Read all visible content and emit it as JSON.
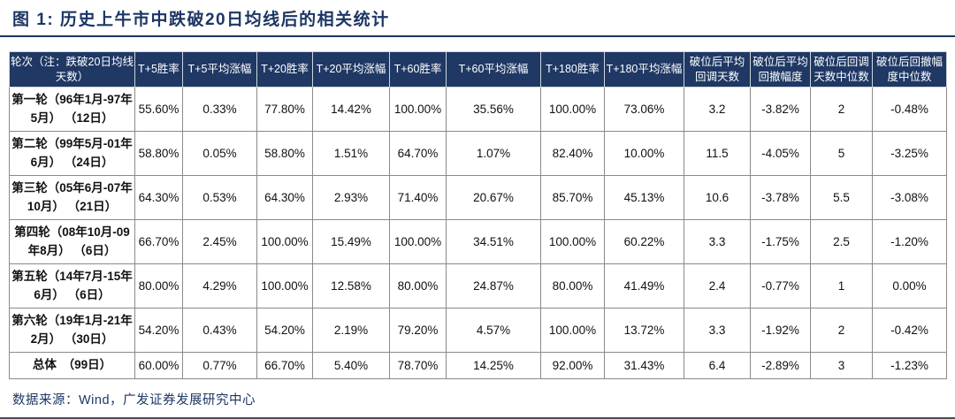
{
  "title": "图 1: 历史上牛市中跌破20日均线后的相关统计",
  "source_note": "数据来源：Wind，广发证券发展研究中心",
  "colors": {
    "accent_navy": "#1f3864",
    "header_text": "#ffffff",
    "body_border": "#8a8a8a",
    "bottom_rule": "#4d4d55"
  },
  "chart_data": {
    "type": "table",
    "title": "历史上牛市中跌破20日均线后的相关统计",
    "columns": [
      "轮次（注：跌破20日均线天数）",
      "T+5胜率",
      "T+5平均涨幅",
      "T+20胜率",
      "T+20平均涨幅",
      "T+60胜率",
      "T+60平均涨幅",
      "T+180胜率",
      "T+180平均涨幅",
      "破位后平均回调天数",
      "破位后平均回撤幅度",
      "破位后回调天数中位数",
      "破位后回撤幅度中位数"
    ],
    "rows": [
      [
        "第一轮（96年1月-97年5月） （12日）",
        "55.60%",
        "0.33%",
        "77.80%",
        "14.42%",
        "100.00%",
        "35.56%",
        "100.00%",
        "73.06%",
        "3.2",
        "-3.82%",
        "2",
        "-0.48%"
      ],
      [
        "第二轮（99年5月-01年6月） （24日）",
        "58.80%",
        "0.05%",
        "58.80%",
        "1.51%",
        "64.70%",
        "1.07%",
        "82.40%",
        "10.00%",
        "11.5",
        "-4.05%",
        "5",
        "-3.25%"
      ],
      [
        "第三轮（05年6月-07年10月） （21日）",
        "64.30%",
        "0.53%",
        "64.30%",
        "2.93%",
        "71.40%",
        "20.67%",
        "85.70%",
        "45.13%",
        "10.6",
        "-3.78%",
        "5.5",
        "-3.08%"
      ],
      [
        "第四轮（08年10月-09年8月） （6日）",
        "66.70%",
        "2.45%",
        "100.00%",
        "15.49%",
        "100.00%",
        "34.51%",
        "100.00%",
        "60.22%",
        "3.3",
        "-1.75%",
        "2.5",
        "-1.20%"
      ],
      [
        "第五轮（14年7月-15年6月） （6日）",
        "80.00%",
        "4.29%",
        "100.00%",
        "12.58%",
        "80.00%",
        "24.87%",
        "80.00%",
        "41.49%",
        "2.4",
        "-0.77%",
        "1",
        "0.00%"
      ],
      [
        "第六轮（19年1月-21年2月） （30日）",
        "54.20%",
        "0.43%",
        "54.20%",
        "2.19%",
        "79.20%",
        "4.57%",
        "100.00%",
        "13.72%",
        "3.3",
        "-1.92%",
        "2",
        "-0.42%"
      ],
      [
        "总体　（99日）",
        "60.00%",
        "0.77%",
        "66.70%",
        "5.40%",
        "78.70%",
        "14.25%",
        "92.00%",
        "31.43%",
        "6.4",
        "-2.89%",
        "3",
        "-1.23%"
      ]
    ]
  }
}
